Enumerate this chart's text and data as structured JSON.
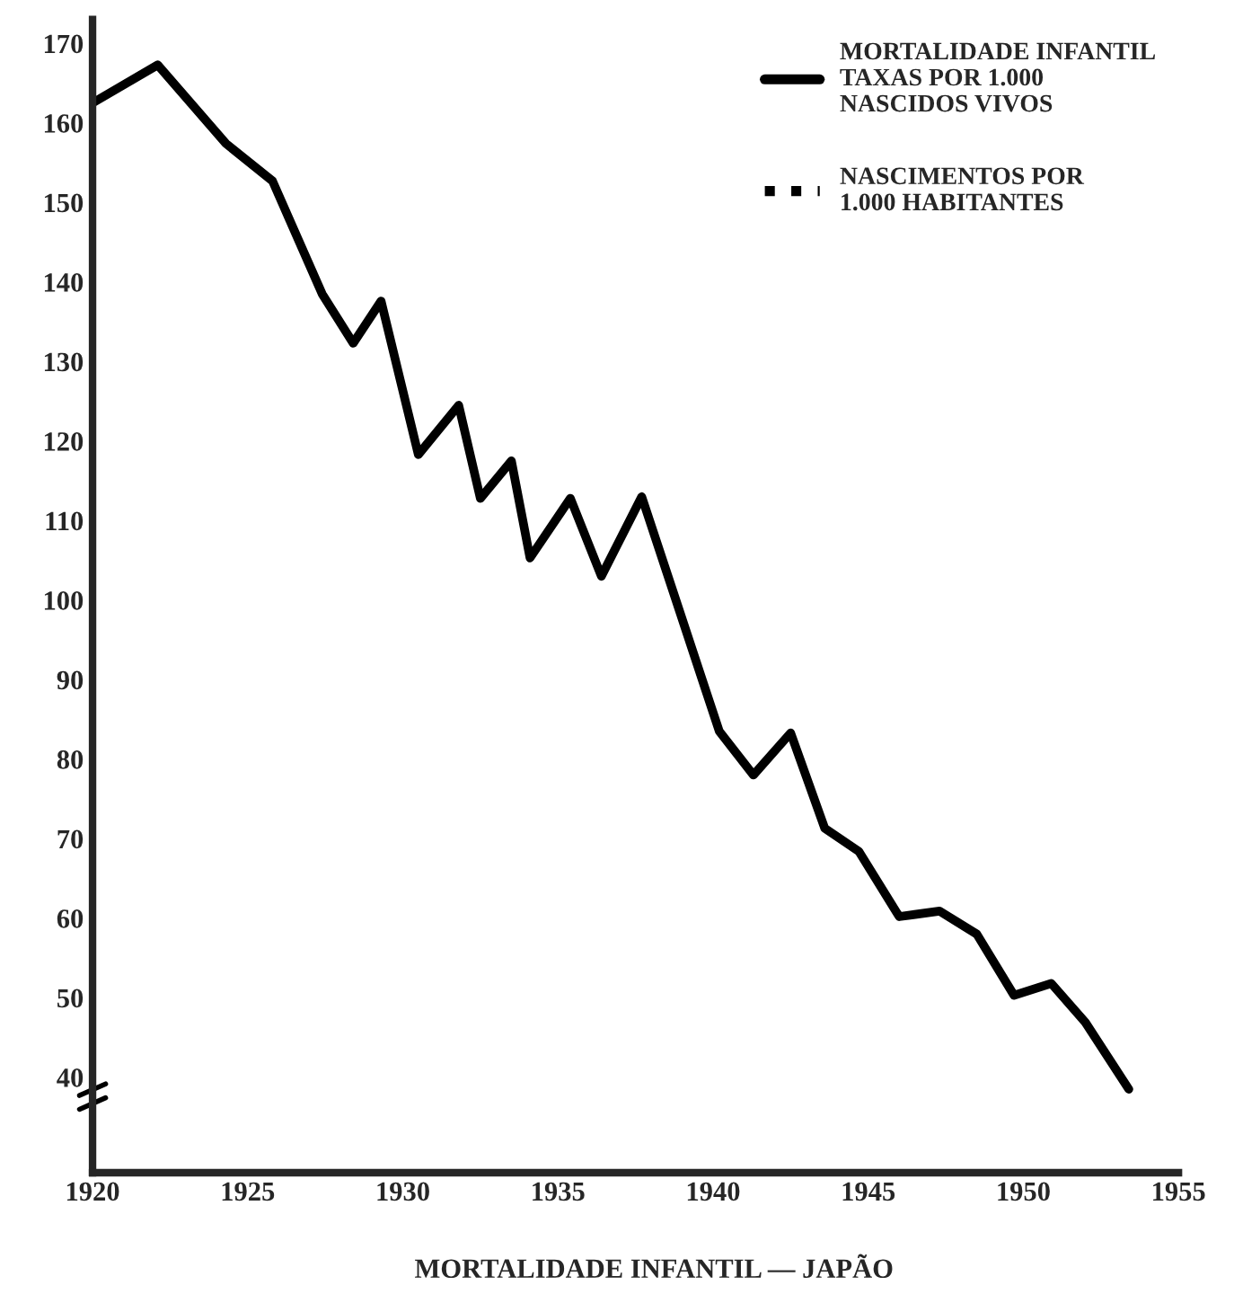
{
  "chart_data": {
    "type": "line",
    "title": "MORTALIDADE INFANTIL — JAPÃO",
    "x": [
      1920,
      1922.1,
      1924.3,
      1925.8,
      1927.4,
      1928.4,
      1929.3,
      1930.5,
      1931.8,
      1932.5,
      1933.5,
      1934.1,
      1935.4,
      1936.4,
      1937.7,
      1940.2,
      1941.3,
      1942.5,
      1943.6,
      1944.7,
      1946.0,
      1947.3,
      1948.5,
      1949.7,
      1950.9,
      1952.0,
      1953.4
    ],
    "series": [
      {
        "name": "MORTALIDADE INFANTIL\nTAXAS POR 1.000\nNASCIDOS VIVOS",
        "color": "#000000",
        "line_style": "solid",
        "values": [
          162.5,
          167.3,
          157.4,
          152.7,
          138.5,
          132.3,
          137.6,
          118.3,
          124.5,
          112.8,
          117.5,
          105.3,
          112.8,
          103.0,
          113.0,
          83.5,
          78.0,
          83.3,
          71.3,
          68.4,
          60.2,
          60.9,
          58.0,
          50.3,
          51.8,
          46.9,
          38.5
        ]
      },
      {
        "name": "NASCIMENTOS POR\n1.000 HABITANTES",
        "color": "#000000",
        "line_style": "dotted",
        "values": [
          null,
          null,
          null,
          null,
          null,
          null,
          null,
          null,
          null,
          null,
          null,
          null,
          null,
          null,
          null,
          null,
          null,
          null,
          null,
          null,
          null,
          null,
          null,
          null,
          null,
          null,
          null
        ]
      }
    ],
    "xlim": [
      1920,
      1955
    ],
    "xticks": [
      1920,
      1925,
      1930,
      1935,
      1940,
      1945,
      1950,
      1955
    ],
    "ylim": [
      28,
      173
    ],
    "yticks": [
      40,
      50,
      60,
      70,
      80,
      90,
      100,
      110,
      120,
      130,
      140,
      150,
      160,
      170
    ],
    "grid": false,
    "legend": "top right",
    "marker": "none"
  }
}
